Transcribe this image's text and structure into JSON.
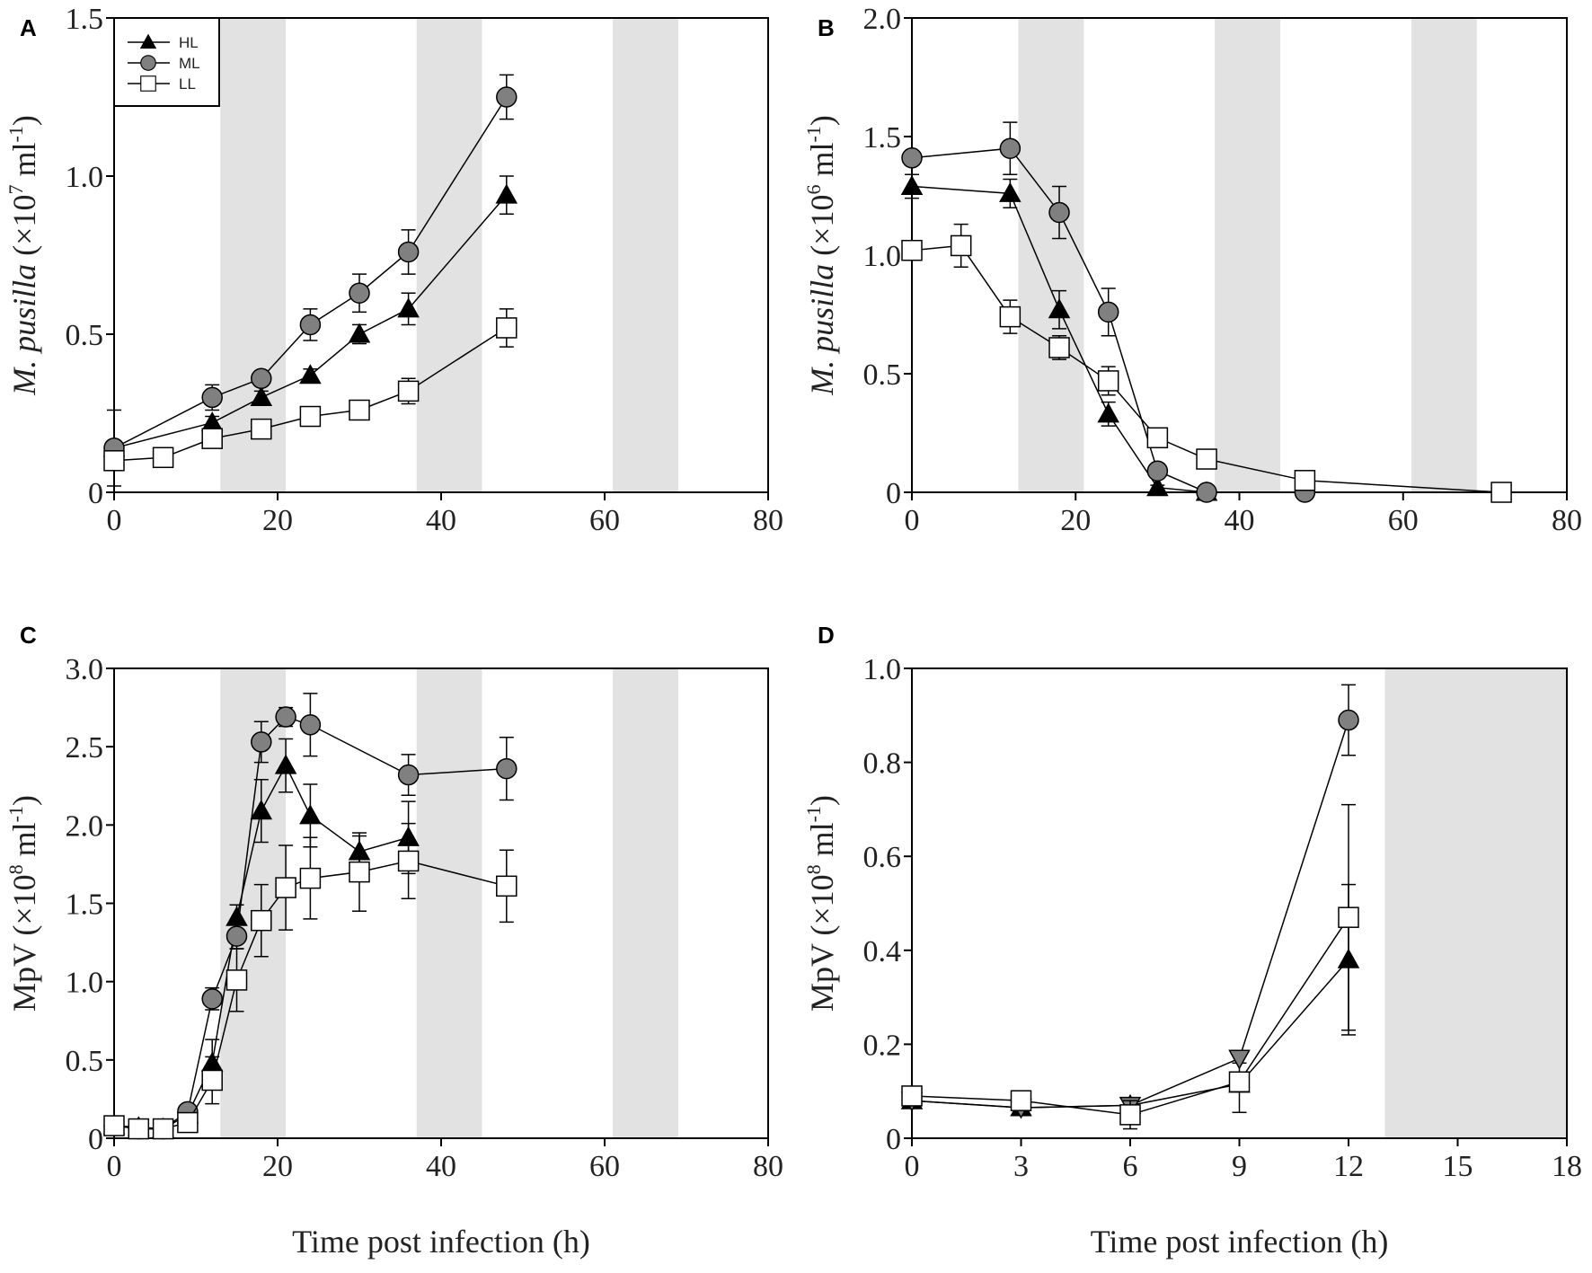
{
  "chart_data": [
    {
      "type": "line",
      "panel": "A",
      "ylabel_italic": "M. pusilla",
      "ylabel_unit": " (×10",
      "ylabel_exp": "7",
      "ylabel_tail": " ml",
      "ylabel_tail_exp": "-1",
      "ylabel_close": ")",
      "xlabel": "",
      "xlim": [
        0,
        80
      ],
      "ylim": [
        0,
        1.5
      ],
      "xticks": [
        0,
        20,
        40,
        60,
        80
      ],
      "xtick_labels": [
        "0",
        "20",
        "40",
        "60",
        "80"
      ],
      "yticks": [
        0,
        0.5,
        1.0,
        1.5
      ],
      "ytick_labels": [
        "0",
        "0.5",
        "1.0",
        "1.5"
      ],
      "dark_periods": [
        [
          13,
          21
        ],
        [
          37,
          45
        ],
        [
          61,
          69
        ]
      ],
      "legend": {
        "placement": "top-left",
        "entries": [
          "HL",
          "ML",
          "LL"
        ]
      },
      "series": [
        {
          "name": "HL",
          "marker": "triangle",
          "x": [
            0,
            12,
            18,
            24,
            30,
            36,
            48
          ],
          "y": [
            0.14,
            0.22,
            0.3,
            0.37,
            0.5,
            0.58,
            0.94
          ],
          "err": [
            0.02,
            0.02,
            0.02,
            0.02,
            0.03,
            0.05,
            0.06
          ]
        },
        {
          "name": "ML",
          "marker": "circle",
          "x": [
            0,
            12,
            18,
            24,
            30,
            36,
            48
          ],
          "y": [
            0.14,
            0.3,
            0.36,
            0.53,
            0.63,
            0.76,
            1.25
          ],
          "err": [
            0.12,
            0.04,
            0.02,
            0.05,
            0.06,
            0.07,
            0.07
          ]
        },
        {
          "name": "LL",
          "marker": "square",
          "x": [
            0,
            6,
            12,
            18,
            24,
            30,
            36,
            48
          ],
          "y": [
            0.1,
            0.11,
            0.17,
            0.2,
            0.24,
            0.26,
            0.32,
            0.52
          ],
          "err": [
            0.02,
            0.01,
            0.02,
            0.02,
            0.03,
            0.03,
            0.04,
            0.06
          ]
        }
      ]
    },
    {
      "type": "line",
      "panel": "B",
      "ylabel_italic": "M. pusilla",
      "ylabel_unit": " (×10",
      "ylabel_exp": "6",
      "ylabel_tail": " ml",
      "ylabel_tail_exp": "-1",
      "ylabel_close": ")",
      "xlabel": "",
      "xlim": [
        0,
        80
      ],
      "ylim": [
        0,
        2.0
      ],
      "xticks": [
        0,
        20,
        40,
        60,
        80
      ],
      "xtick_labels": [
        "0",
        "20",
        "40",
        "60",
        "80"
      ],
      "yticks": [
        0,
        0.5,
        1.0,
        1.5,
        2.0
      ],
      "ytick_labels": [
        "0",
        "0.5",
        "1.0",
        "1.5",
        "2.0"
      ],
      "dark_periods": [
        [
          13,
          21
        ],
        [
          37,
          45
        ],
        [
          61,
          69
        ]
      ],
      "series": [
        {
          "name": "HL",
          "marker": "triangle",
          "x": [
            0,
            12,
            18,
            24,
            30,
            36
          ],
          "y": [
            1.29,
            1.26,
            0.77,
            0.33,
            0.02,
            0.0
          ],
          "err": [
            0.05,
            0.06,
            0.08,
            0.05,
            0.01,
            0.0
          ]
        },
        {
          "name": "ML",
          "marker": "circle",
          "x": [
            0,
            12,
            18,
            24,
            30,
            36,
            48
          ],
          "y": [
            1.41,
            1.45,
            1.18,
            0.76,
            0.09,
            0.0,
            0.0
          ],
          "err": [
            0.03,
            0.11,
            0.11,
            0.1,
            0.01,
            0.0,
            0.0
          ]
        },
        {
          "name": "LL",
          "marker": "square",
          "x": [
            0,
            6,
            12,
            18,
            24,
            30,
            36,
            48,
            72
          ],
          "y": [
            1.02,
            1.04,
            0.74,
            0.61,
            0.47,
            0.23,
            0.14,
            0.05,
            0.0
          ],
          "err": [
            0.03,
            0.09,
            0.07,
            0.05,
            0.06,
            0.01,
            0.01,
            0.01,
            0.0
          ]
        }
      ]
    },
    {
      "type": "line",
      "panel": "C",
      "ylabel_italic": "",
      "ylabel_unit": "MpV (×10",
      "ylabel_exp": "8",
      "ylabel_tail": " ml",
      "ylabel_tail_exp": "-1",
      "ylabel_close": ")",
      "xlabel": "Time post infection (h)",
      "xlim": [
        0,
        80
      ],
      "ylim": [
        0,
        3.0
      ],
      "xticks": [
        0,
        20,
        40,
        60,
        80
      ],
      "xtick_labels": [
        "0",
        "20",
        "40",
        "60",
        "80"
      ],
      "yticks": [
        0,
        0.5,
        1.0,
        1.5,
        2.0,
        2.5,
        3.0
      ],
      "ytick_labels": [
        "0",
        "0.5",
        "1.0",
        "1.5",
        "2.0",
        "2.5",
        "3.0"
      ],
      "dark_periods": [
        [
          13,
          21
        ],
        [
          37,
          45
        ],
        [
          61,
          69
        ]
      ],
      "series": [
        {
          "name": "HL",
          "marker": "triangle",
          "x": [
            0,
            3,
            6,
            9,
            12,
            15,
            18,
            21,
            24,
            30,
            36
          ],
          "y": [
            0.08,
            0.07,
            0.06,
            0.15,
            0.48,
            1.41,
            2.09,
            2.38,
            2.06,
            1.83,
            1.92
          ],
          "err": [
            0.02,
            0.02,
            0.02,
            0.04,
            0.15,
            0.08,
            0.2,
            0.17,
            0.2,
            0.1,
            0.23
          ]
        },
        {
          "name": "ML",
          "marker": "circle",
          "x": [
            0,
            3,
            6,
            9,
            12,
            15,
            18,
            21,
            24,
            36,
            48
          ],
          "y": [
            0.08,
            0.06,
            0.06,
            0.17,
            0.89,
            1.29,
            2.53,
            2.69,
            2.64,
            2.32,
            2.36
          ],
          "err": [
            0.02,
            0.02,
            0.02,
            0.03,
            0.07,
            0.08,
            0.13,
            0.06,
            0.2,
            0.13,
            0.2
          ]
        },
        {
          "name": "LL",
          "marker": "square",
          "x": [
            0,
            3,
            6,
            9,
            12,
            15,
            18,
            21,
            24,
            30,
            36,
            48
          ],
          "y": [
            0.08,
            0.06,
            0.06,
            0.1,
            0.37,
            1.01,
            1.39,
            1.6,
            1.66,
            1.7,
            1.77,
            1.61
          ],
          "err": [
            0.02,
            0.02,
            0.02,
            0.06,
            0.15,
            0.2,
            0.23,
            0.27,
            0.26,
            0.25,
            0.24,
            0.23
          ]
        }
      ]
    },
    {
      "type": "line",
      "panel": "D",
      "ylabel_italic": "",
      "ylabel_unit": "MpV (×10",
      "ylabel_exp": "8",
      "ylabel_tail": " ml",
      "ylabel_tail_exp": "-1",
      "ylabel_close": ")",
      "xlabel": "Time post infection (h)",
      "xlim": [
        0,
        18
      ],
      "ylim": [
        0,
        1.0
      ],
      "xticks": [
        0,
        3,
        6,
        9,
        12,
        15,
        18
      ],
      "xtick_labels": [
        "0",
        "3",
        "6",
        "9",
        "12",
        "15",
        "18"
      ],
      "yticks": [
        0,
        0.2,
        0.4,
        0.6,
        0.8,
        1.0
      ],
      "ytick_labels": [
        "0",
        "0.2",
        "0.4",
        "0.6",
        "0.8",
        "1.0"
      ],
      "dark_periods": [
        [
          13,
          18
        ]
      ],
      "series": [
        {
          "name": "HL",
          "marker": "triangle",
          "x": [
            0,
            3,
            6,
            9,
            12
          ],
          "y": [
            0.08,
            0.065,
            0.07,
            0.115,
            0.38
          ],
          "err": [
            0.01,
            0.01,
            0.01,
            0.06,
            0.16
          ]
        },
        {
          "name": "ML",
          "marker": "triangle-down",
          "last_marker": "circle",
          "x": [
            0,
            3,
            6,
            9,
            12
          ],
          "y": [
            0.08,
            0.065,
            0.07,
            0.17,
            0.89
          ],
          "err": [
            0.01,
            0.01,
            0.01,
            0.01,
            0.075
          ]
        },
        {
          "name": "LL",
          "marker": "square",
          "x": [
            0,
            3,
            6,
            9,
            12
          ],
          "y": [
            0.09,
            0.08,
            0.05,
            0.12,
            0.47
          ],
          "err": [
            0.01,
            0.01,
            0.03,
            0.02,
            0.24
          ]
        }
      ]
    }
  ]
}
